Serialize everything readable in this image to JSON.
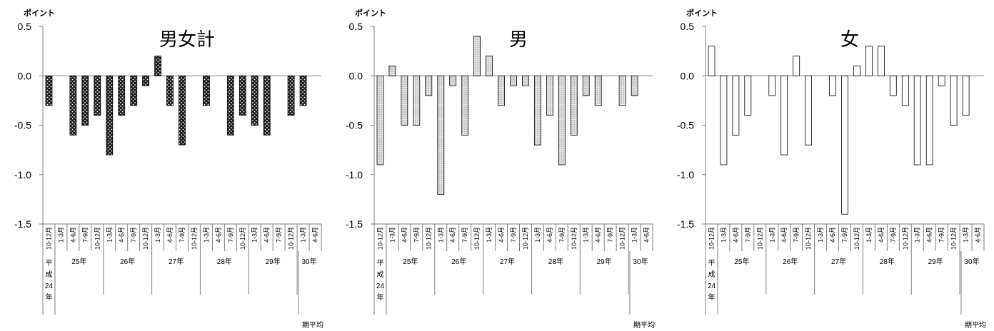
{
  "x_period_labels": [
    "10-12月",
    "1-3月",
    "4-6月",
    "7-9月",
    "10-12月",
    "1-3月",
    "4-6月",
    "7-9月",
    "10-12月",
    "1-3月",
    "4-6月",
    "7-9月",
    "10-12月",
    "1-3月",
    "4-6月",
    "7-9月",
    "10-12月",
    "1-3月",
    "4-6月",
    "7-9月",
    "10-12月",
    "1-3月",
    "4-6月"
  ],
  "x_year_groups": [
    {
      "label": "平成24年",
      "vertical": true,
      "start": 0,
      "count": 1
    },
    {
      "label": "25年",
      "start": 1,
      "count": 4
    },
    {
      "label": "26年",
      "start": 5,
      "count": 4
    },
    {
      "label": "27年",
      "start": 9,
      "count": 4
    },
    {
      "label": "28年",
      "start": 13,
      "count": 4
    },
    {
      "label": "29年",
      "start": 17,
      "count": 4
    },
    {
      "label": "30年",
      "start": 21,
      "count": 2
    }
  ],
  "footnote": "期平均",
  "chart_data": [
    {
      "type": "bar",
      "title": "男女計",
      "ylabel": "ポイント",
      "ylim": [
        -1.5,
        0.5
      ],
      "yticks": [
        "0.5",
        "0.0",
        "-0.5",
        "-1.0",
        "-1.5"
      ],
      "grid": false,
      "fill_style": "dark-dotted",
      "series": [
        {
          "values": [
            -0.3,
            0,
            -0.6,
            -0.5,
            -0.4,
            -0.8,
            -0.4,
            -0.3,
            -0.1,
            0.2,
            -0.3,
            -0.7,
            0,
            -0.3,
            0,
            -0.6,
            -0.4,
            -0.5,
            -0.6,
            0,
            -0.4,
            -0.3,
            0
          ]
        }
      ]
    },
    {
      "type": "bar",
      "title": "男",
      "ylabel": "ポイント",
      "ylim": [
        -1.5,
        0.5
      ],
      "yticks": [
        "0.5",
        "0.0",
        "-0.5",
        "-1.0",
        "-1.5"
      ],
      "grid": false,
      "fill_style": "light-dotted",
      "series": [
        {
          "values": [
            -0.9,
            0.1,
            -0.5,
            -0.5,
            -0.2,
            -1.2,
            -0.1,
            -0.6,
            0.4,
            0.2,
            -0.3,
            -0.1,
            -0.1,
            -0.7,
            -0.4,
            -0.9,
            -0.6,
            -0.2,
            -0.3,
            0,
            -0.3,
            -0.2,
            0
          ]
        }
      ]
    },
    {
      "type": "bar",
      "title": "女",
      "ylabel": "ポイント",
      "ylim": [
        -1.5,
        0.5
      ],
      "yticks": [
        "0.5",
        "0.0",
        "-0.5",
        "-1.0",
        "-1.5"
      ],
      "grid": false,
      "fill_style": "white",
      "series": [
        {
          "values": [
            0.3,
            -0.9,
            -0.6,
            -0.4,
            0,
            -0.2,
            -0.8,
            0.2,
            -0.7,
            0,
            -0.2,
            -1.4,
            0.1,
            0.3,
            0.3,
            -0.2,
            -0.3,
            -0.9,
            -0.9,
            -0.1,
            -0.5,
            -0.4,
            0
          ]
        }
      ]
    }
  ],
  "colors": {
    "axis": "#7f7f7f",
    "bar_outline": "#000000",
    "dark_fill": "#1c1c1c",
    "light_fill": "#e6e6e6",
    "white_fill": "#ffffff"
  }
}
